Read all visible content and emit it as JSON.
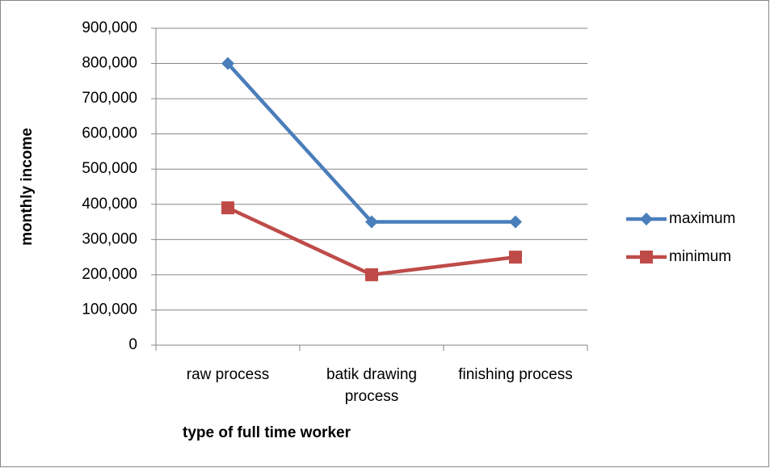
{
  "chart_data": {
    "type": "line",
    "x_label": "type of full time worker",
    "y_label": "monthly income",
    "categories": [
      "raw process",
      "batik drawing process",
      "finishing process"
    ],
    "series": [
      {
        "name": "maximum",
        "color": "#4a7ebb",
        "marker": "diamond",
        "values": [
          800000,
          350000,
          350000
        ]
      },
      {
        "name": "minimum",
        "color": "#be4b48",
        "marker": "square",
        "values": [
          390000,
          200000,
          250000
        ]
      }
    ],
    "ylim": [
      0,
      900000
    ],
    "yticks": [
      0,
      {
        "value": 100000,
        "label": "100,000"
      },
      {
        "value": 200000,
        "label": "200,000"
      },
      {
        "value": 300000,
        "label": "300,000"
      },
      {
        "value": 400000,
        "label": "400,000"
      },
      {
        "value": 500000,
        "label": "500,000"
      },
      {
        "value": 600000,
        "label": "600,000"
      },
      {
        "value": 700000,
        "label": "700,000"
      },
      {
        "value": 800000,
        "label": "800,000"
      },
      {
        "value": 900000,
        "label": "900,000"
      }
    ],
    "grid": true,
    "legend": "right"
  }
}
